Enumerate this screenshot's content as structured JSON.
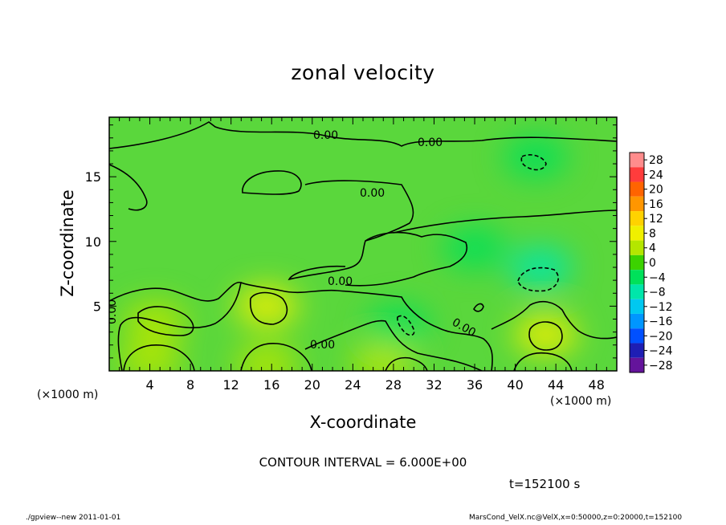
{
  "chart_data": {
    "type": "heatmap",
    "title": "zonal velocity",
    "xlabel": "X-coordinate",
    "ylabel": "Z-coordinate",
    "x_unit_label": "(×1000 m)",
    "xlim": [
      0,
      50
    ],
    "ylim": [
      0,
      19.6
    ],
    "x_ticks": [
      4,
      8,
      12,
      16,
      20,
      24,
      28,
      32,
      36,
      40,
      44,
      48
    ],
    "y_ticks": [
      5,
      10,
      15
    ],
    "colorbar": {
      "levels": [
        28,
        24,
        20,
        16,
        12,
        8,
        4,
        0,
        -4,
        -8,
        -12,
        -16,
        -20,
        -24,
        -28
      ],
      "labels": [
        "28",
        "24",
        "20",
        "16",
        "12",
        "8",
        "4",
        "0",
        "−4",
        "−8",
        "−12",
        "−16",
        "−20",
        "−24",
        "−28"
      ],
      "colors": [
        "#ff8c8c",
        "#ff3c3c",
        "#ff6400",
        "#ff9600",
        "#ffd200",
        "#f0f000",
        "#b4e600",
        "#3cd200",
        "#00e15a",
        "#00e6aa",
        "#00c8f0",
        "#0096ff",
        "#0050ff",
        "#1e1eb4",
        "#64149b"
      ]
    },
    "contour_interval_text": "CONTOUR INTERVAL = 6.000E+00",
    "contour_labels": [
      "0.00",
      "0.00",
      "0.00",
      "0.00",
      "0.00",
      "0.00",
      "0.00"
    ],
    "time_text": "t=152100  s",
    "features": [
      {
        "x": 4.5,
        "z": 3.8,
        "value": 5.5
      },
      {
        "x": 15.5,
        "z": 5.0,
        "value": 6.5
      },
      {
        "x": 43.0,
        "z": 2.8,
        "value": 6.0
      },
      {
        "x": 15.5,
        "z": 0.5,
        "value": 5.0
      },
      {
        "x": 4.0,
        "z": 0.8,
        "value": 4.0
      },
      {
        "x": 27.0,
        "z": 0.6,
        "value": 4.5
      },
      {
        "x": 42.5,
        "z": 8.0,
        "value": -7.0
      },
      {
        "x": 28.5,
        "z": 3.5,
        "value": -5.5
      },
      {
        "x": 42.0,
        "z": 16.5,
        "value": -5.0
      },
      {
        "x": 36.0,
        "z": 9.5,
        "value": -3.5
      }
    ]
  },
  "footer": {
    "left": "./gpview--new   2011-01-01",
    "right": "MarsCond_VelX.nc@VelX,x=0:50000,z=0:20000,t=152100"
  },
  "colors": {
    "base_field": "#5ad73c",
    "axes": "#000000"
  }
}
